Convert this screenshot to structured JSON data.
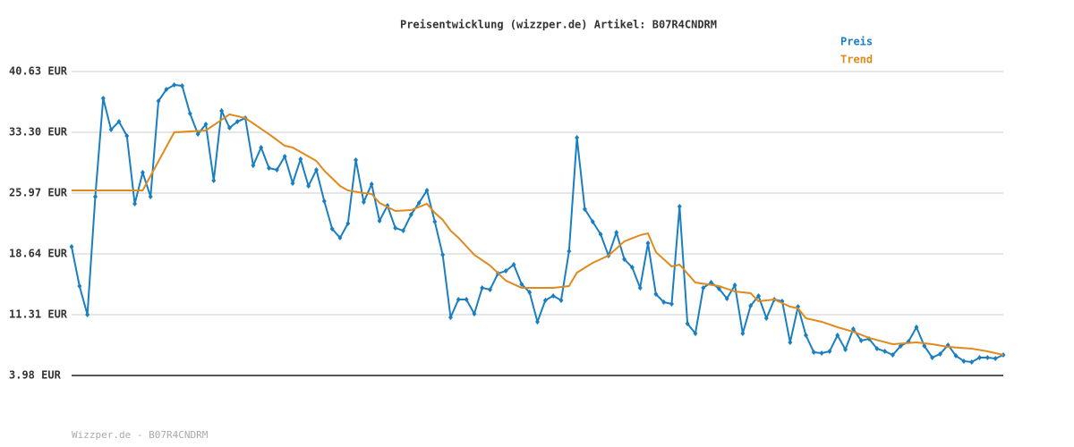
{
  "chart_data": {
    "type": "line",
    "title": "Preisentwicklung (wizzper.de) Artikel: B07R4CNDRM",
    "footer": "Wizzper.de - B07R4CNDRM",
    "xlim": [
      0,
      118
    ],
    "ylim": [
      3.98,
      40.63
    ],
    "yticks": [
      {
        "value": 3.98,
        "label": "3.98 EUR"
      },
      {
        "value": 11.31,
        "label": "11.31 EUR"
      },
      {
        "value": 18.64,
        "label": "18.64 EUR"
      },
      {
        "value": 25.97,
        "label": "25.97 EUR"
      },
      {
        "value": 33.3,
        "label": "33.30 EUR"
      },
      {
        "value": 40.63,
        "label": "40.63 EUR"
      }
    ],
    "grid": true,
    "series": [
      {
        "name": "Preis",
        "color": "#1a7fc0",
        "markers": true,
        "values": [
          19.5,
          14.76,
          11.31,
          25.54,
          37.4,
          33.62,
          34.59,
          32.87,
          24.68,
          28.45,
          25.54,
          37.07,
          38.47,
          39.01,
          38.91,
          35.56,
          33.08,
          34.27,
          27.48,
          35.89,
          33.84,
          34.59,
          35.02,
          29.31,
          31.47,
          28.99,
          28.77,
          30.39,
          27.16,
          30.07,
          26.83,
          28.77,
          25.0,
          21.66,
          20.58,
          22.31,
          29.96,
          24.89,
          27.05,
          22.63,
          24.46,
          21.77,
          21.44,
          23.38,
          24.79,
          26.29,
          22.52,
          18.53,
          10.99,
          13.14,
          13.14,
          11.42,
          14.55,
          14.33,
          16.27,
          16.59,
          17.35,
          14.98,
          14.01,
          10.45,
          13.04,
          13.58,
          13.04,
          18.96,
          32.65,
          24.03,
          22.52,
          21.01,
          18.43,
          21.23,
          17.99,
          17.02,
          14.55,
          19.93,
          13.79,
          12.82,
          12.6,
          24.35,
          10.23,
          9.05,
          14.55,
          15.19,
          14.44,
          13.25,
          14.87,
          9.05,
          12.39,
          13.58,
          10.88,
          13.14,
          12.93,
          7.97,
          12.28,
          8.83,
          6.78,
          6.68,
          6.89,
          8.83,
          7.11,
          9.59,
          8.19,
          8.4,
          7.22,
          6.89,
          6.46,
          7.54,
          8.08,
          9.8,
          7.54,
          6.14,
          6.57,
          7.65,
          6.35,
          5.71,
          5.6,
          6.14,
          6.14,
          6.03,
          6.46
        ]
      },
      {
        "name": "Trend",
        "color": "#e08a1e",
        "markers": false,
        "x": [
          0,
          9,
          13,
          17,
          20,
          22,
          25,
          27,
          28,
          31,
          32,
          34,
          35,
          37,
          38,
          39,
          41,
          43,
          45,
          46,
          47,
          48,
          49,
          51,
          53,
          55,
          57,
          59,
          61,
          63,
          64,
          66,
          68,
          70,
          72,
          73,
          74,
          76,
          77,
          79,
          82,
          84,
          86,
          87,
          89,
          91,
          92,
          93,
          95,
          97,
          99,
          101,
          104,
          107,
          109,
          111,
          114,
          116,
          118
        ],
        "values": [
          26.29,
          26.29,
          33.3,
          33.52,
          35.46,
          35.02,
          33.08,
          31.68,
          31.47,
          29.85,
          28.67,
          26.83,
          26.29,
          25.97,
          25.86,
          24.79,
          23.81,
          23.92,
          24.68,
          23.6,
          22.74,
          21.44,
          20.58,
          18.53,
          17.24,
          15.41,
          14.55,
          14.55,
          14.55,
          14.76,
          16.38,
          17.56,
          18.43,
          20.15,
          20.9,
          21.12,
          18.86,
          17.13,
          17.35,
          15.19,
          14.76,
          14.11,
          13.9,
          12.93,
          13.14,
          12.28,
          12.07,
          10.88,
          10.45,
          9.8,
          9.26,
          8.51,
          7.75,
          7.97,
          7.75,
          7.43,
          7.22,
          6.89,
          6.46
        ]
      }
    ]
  }
}
